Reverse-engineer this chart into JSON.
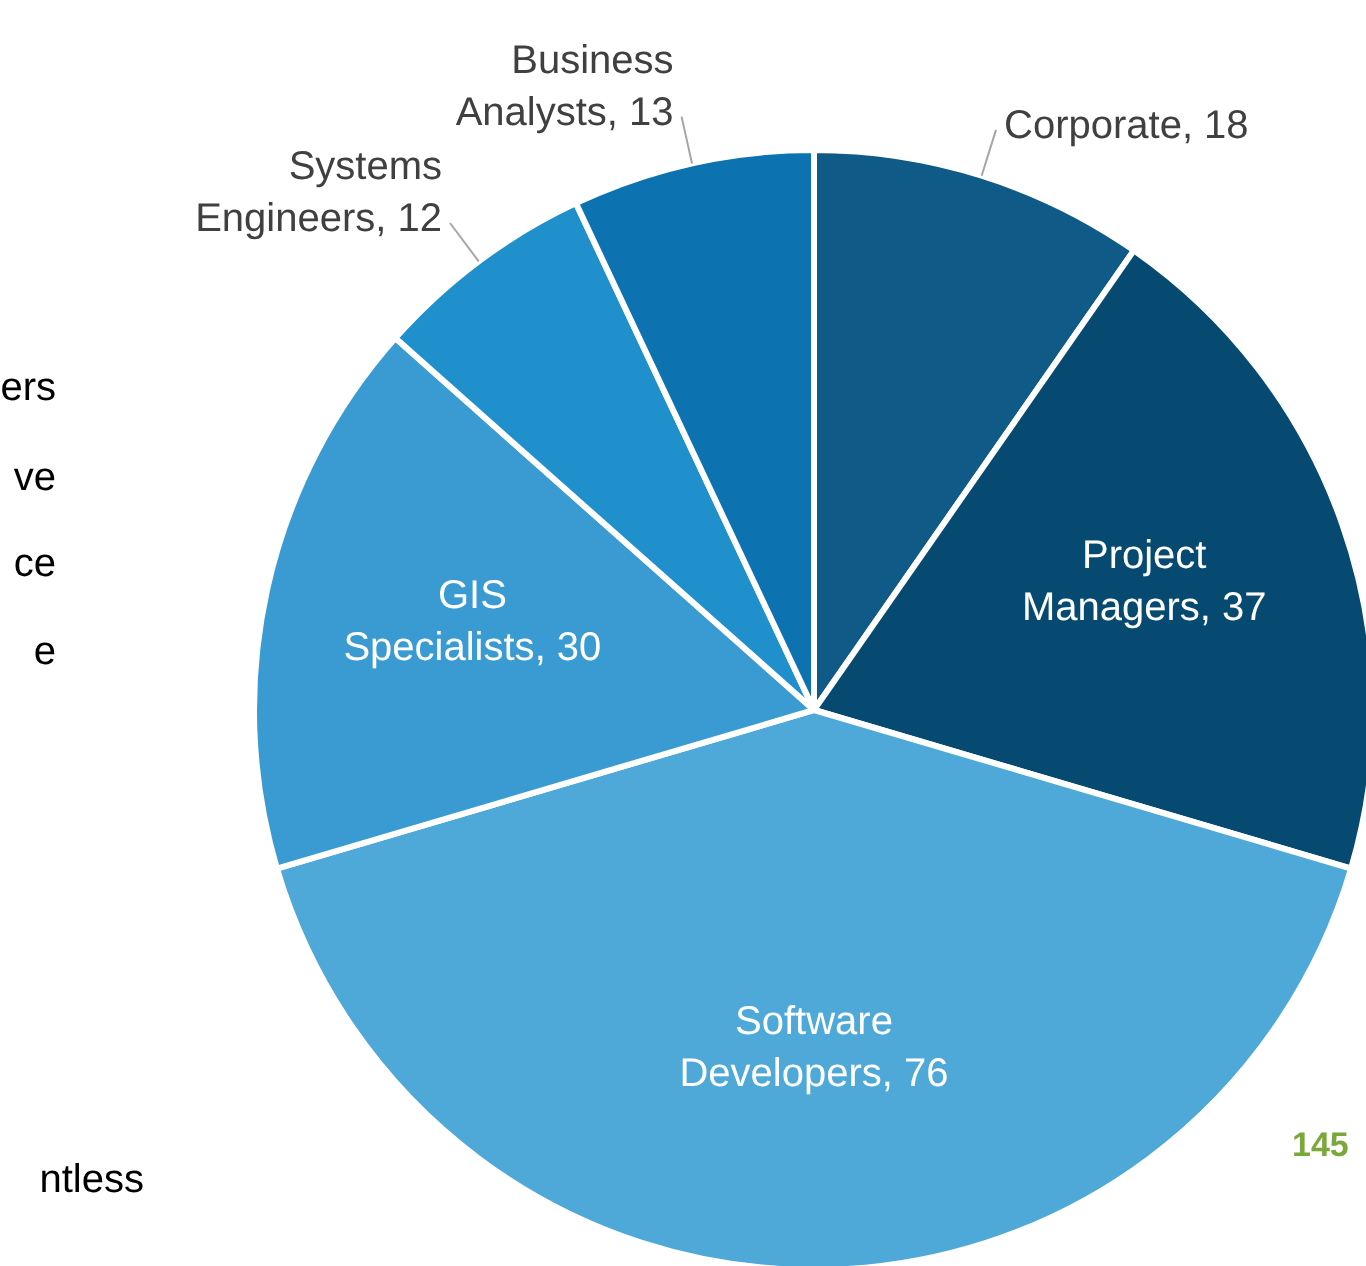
{
  "chart_data": {
    "type": "pie",
    "categories": [
      "Corporate",
      "Project Managers",
      "Software Developers",
      "GIS Specialists",
      "Systems Engineers",
      "Business Analysts"
    ],
    "values": [
      18,
      37,
      76,
      30,
      12,
      13
    ],
    "colors": [
      "#0f5a87",
      "#064a72",
      "#4ea8d8",
      "#3a9bd2",
      "#2090cc",
      "#0d72b0"
    ],
    "value_labels": [
      ", 18",
      ", 37",
      ", 76",
      ", 30",
      ", 12",
      ", 13"
    ],
    "annotations": [
      "ers",
      "ve",
      "ce",
      "e",
      "ntless",
      "145"
    ]
  }
}
